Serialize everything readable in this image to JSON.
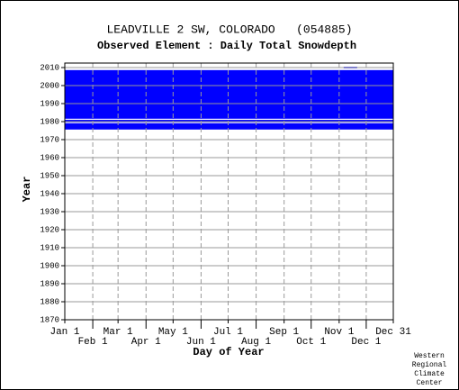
{
  "chart_data": {
    "type": "availability",
    "title": "LEADVILLE 2 SW, COLORADO   (054885)",
    "subtitle": "Observed Element : Daily Total Snowdepth",
    "x_label": "Day of Year",
    "y_label": "Year",
    "credit": [
      "Western",
      "Regional",
      "Climate",
      "Center"
    ],
    "color": "#0000ff",
    "grid": true,
    "xlim": [
      1,
      365
    ],
    "xticks": [
      {
        "value": 1,
        "label": "Jan 1"
      },
      {
        "value": 32,
        "label": "Feb 1"
      },
      {
        "value": 60,
        "label": "Mar 1"
      },
      {
        "value": 91,
        "label": "Apr 1"
      },
      {
        "value": 121,
        "label": "May 1"
      },
      {
        "value": 152,
        "label": "Jun 1"
      },
      {
        "value": 182,
        "label": "Jul 1"
      },
      {
        "value": 213,
        "label": "Aug 1"
      },
      {
        "value": 244,
        "label": "Sep 1"
      },
      {
        "value": 274,
        "label": "Oct 1"
      },
      {
        "value": 305,
        "label": "Nov 1"
      },
      {
        "value": 335,
        "label": "Dec 1"
      },
      {
        "value": 365,
        "label": "Dec 31"
      }
    ],
    "ylim": [
      1870,
      2012.5
    ],
    "yticks": [
      1870,
      1880,
      1890,
      1900,
      1910,
      1920,
      1930,
      1940,
      1950,
      1960,
      1970,
      1980,
      1990,
      2000,
      2010
    ],
    "cells": [
      {
        "x0": 1,
        "x1": 365,
        "y0": 1981.6,
        "y1": 2008.6
      },
      {
        "x0": 1,
        "x1": 365,
        "y0": 1979.6,
        "y1": 1981.0
      },
      {
        "x0": 1,
        "x1": 365,
        "y0": 1975.6,
        "y1": 1979.1
      },
      {
        "x0": 310,
        "x1": 325,
        "y0": 2009.6,
        "y1": 2010.4
      }
    ]
  }
}
